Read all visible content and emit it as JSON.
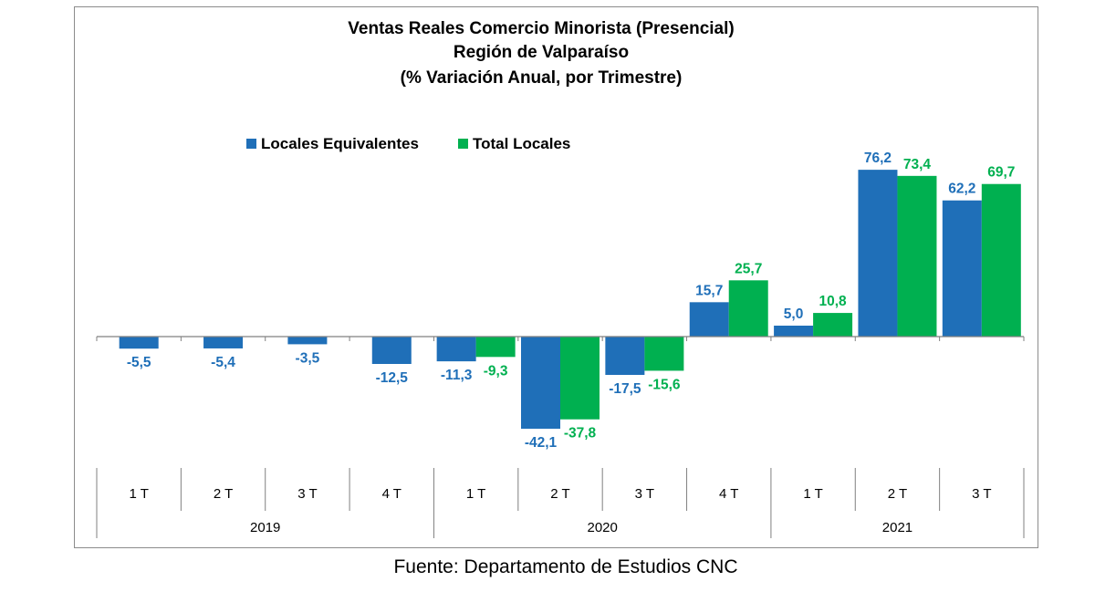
{
  "chart_data": {
    "type": "bar",
    "title": [
      "Ventas Reales Comercio Minorista (Presencial)",
      "Región de Valparaíso",
      "(% Variación Anual, por Trimestre)"
    ],
    "categories": [
      "1 T",
      "2 T",
      "3 T",
      "4 T",
      "1 T",
      "2 T",
      "3 T",
      "4 T",
      "1 T",
      "2 T",
      "3 T"
    ],
    "groups": [
      {
        "label": "2019",
        "count": 4
      },
      {
        "label": "2020",
        "count": 4
      },
      {
        "label": "2021",
        "count": 3
      }
    ],
    "series": [
      {
        "name": "Locales Equivalentes",
        "color": "#1f6fb8",
        "values": [
          -5.5,
          -5.4,
          -3.5,
          -12.5,
          -11.3,
          -42.1,
          -17.5,
          15.7,
          5.0,
          76.2,
          62.2
        ],
        "labels": [
          "-5,5",
          "-5,4",
          "-3,5",
          "-12,5",
          "-11,3",
          "-42,1",
          "-17,5",
          "15,7",
          "5,0",
          "76,2",
          "62,2"
        ]
      },
      {
        "name": "Total Locales",
        "color": "#00b050",
        "values": [
          null,
          null,
          null,
          null,
          -9.3,
          -37.8,
          -15.6,
          25.7,
          10.8,
          73.4,
          69.7
        ],
        "labels": [
          "",
          "",
          "",
          "",
          "-9,3",
          "-37,8",
          "-15,6",
          "25,7",
          "10,8",
          "73,4",
          "69,7"
        ]
      }
    ],
    "legend_position": "top-left",
    "grid": false
  },
  "source": "Fuente: Departamento de Estudios CNC"
}
